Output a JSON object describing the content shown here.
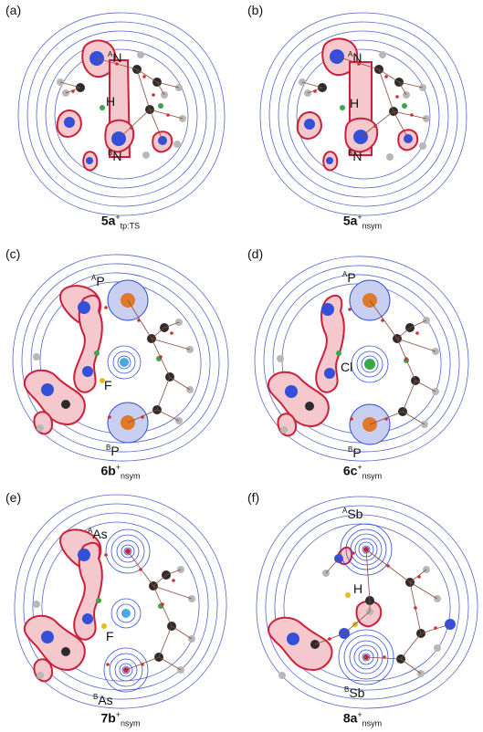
{
  "panels": [
    {
      "label": "(a)",
      "caption": {
        "base": "5a",
        "sup": "+",
        "sub": "tp:TS"
      },
      "top_atom": {
        "pre": "A",
        "sym": "N"
      },
      "center_atom": {
        "sym": "H"
      },
      "bottom_atom": {
        "pre": "B",
        "sym": "N"
      }
    },
    {
      "label": "(b)",
      "caption": {
        "base": "5a",
        "sup": "+",
        "sub": "nsym"
      },
      "top_atom": {
        "pre": "A",
        "sym": "N"
      },
      "center_atom": {
        "sym": "H"
      },
      "bottom_atom": {
        "pre": "B",
        "sym": "N"
      }
    },
    {
      "label": "(c)",
      "caption": {
        "base": "6b",
        "sup": "+",
        "sub": "nsym"
      },
      "top_atom": {
        "pre": "A",
        "sym": "P"
      },
      "center_atom": {
        "sym": "F"
      },
      "bottom_atom": {
        "pre": "B",
        "sym": "P"
      }
    },
    {
      "label": "(d)",
      "caption": {
        "base": "6c",
        "sup": "+",
        "sub": "nsym"
      },
      "top_atom": {
        "pre": "A",
        "sym": "P"
      },
      "center_atom": {
        "sym": "Cl"
      },
      "bottom_atom": {
        "pre": "B",
        "sym": "P"
      }
    },
    {
      "label": "(e)",
      "caption": {
        "base": "7b",
        "sup": "+",
        "sub": "nsym"
      },
      "top_atom": {
        "pre": "A",
        "sym": "As"
      },
      "center_atom": {
        "sym": "F"
      },
      "bottom_atom": {
        "pre": "B",
        "sym": "As"
      }
    },
    {
      "label": "(f)",
      "caption": {
        "base": "8a",
        "sup": "+",
        "sub": "nsym"
      },
      "top_atom": {
        "pre": "A",
        "sym": "Sb"
      },
      "center_atom": {
        "sym": "H"
      },
      "bottom_atom": {
        "pre": "B",
        "sym": "Sb"
      }
    }
  ],
  "colors": {
    "contour": "#5566c8",
    "lobe_fill": "#f4c8cc",
    "lobe_edge": "#cc1f3a",
    "atom_blue": "#3450d8",
    "atom_dark": "#2c2c2c",
    "atom_grey": "#b8b8b8",
    "atom_orange": "#e07a2a",
    "atom_green": "#3aa84a",
    "bcp": "#d03030",
    "path": "#8a4a3a"
  }
}
